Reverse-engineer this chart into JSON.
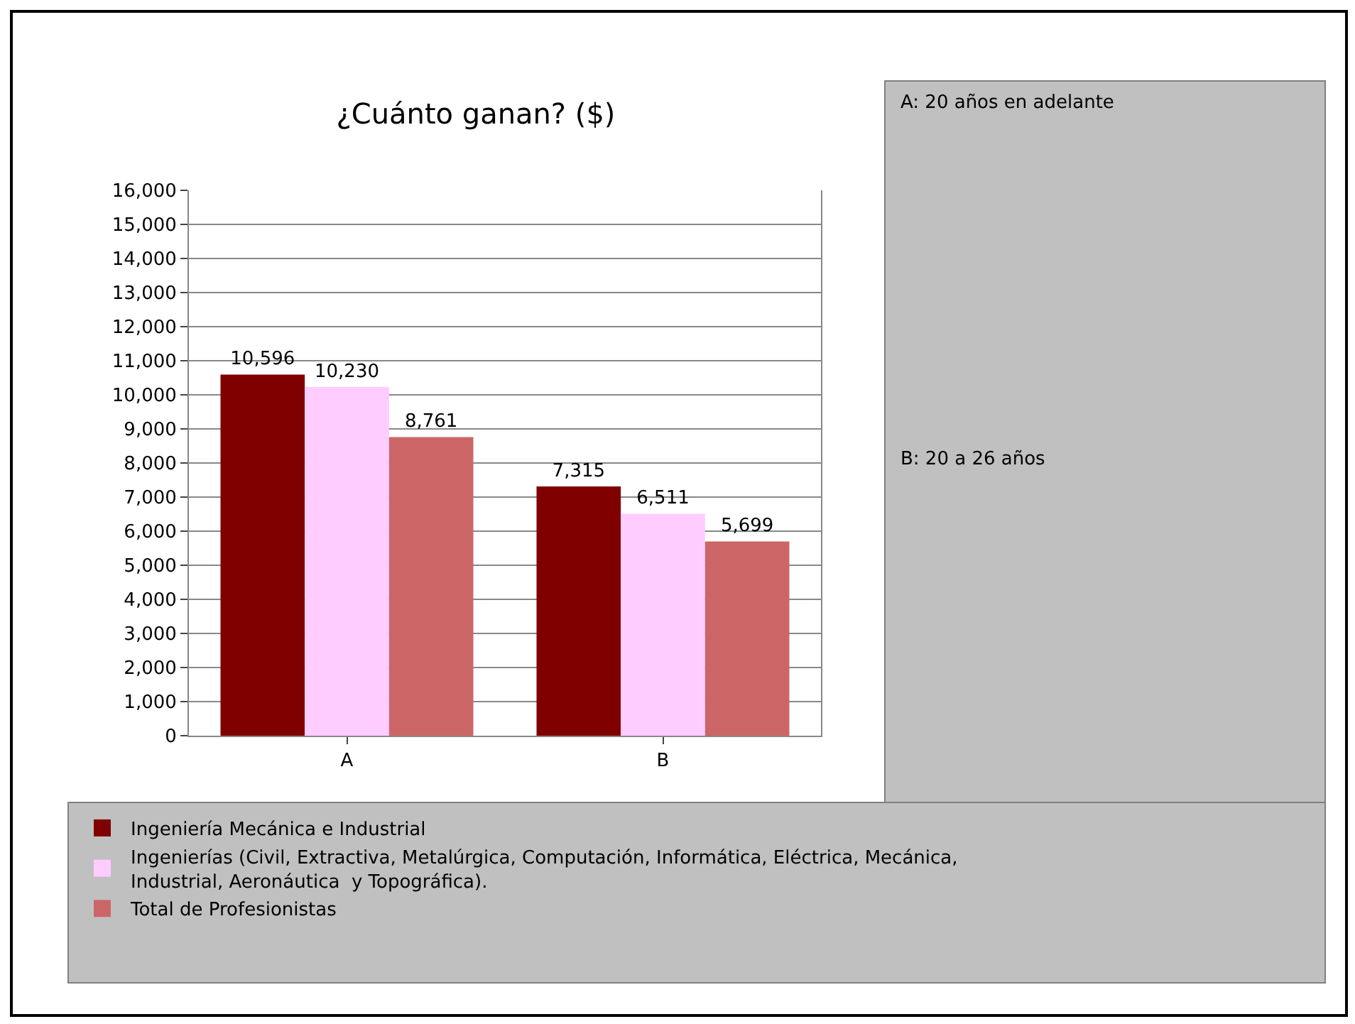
{
  "chart_data": {
    "type": "bar",
    "title": "¿Cuánto ganan? ($)",
    "categories": [
      "A",
      "B"
    ],
    "series": [
      {
        "name": "Ingeniería Mecánica e Industrial",
        "color": "#800000",
        "values": [
          10596,
          7315
        ],
        "value_labels": [
          "10,596",
          "7,315"
        ]
      },
      {
        "name": "Ingenierías (Civil, Extractiva, Metalúrgica, Computación, Informática, Eléctrica, Mecánica, Industrial, Aeronáutica  y Topográfica).",
        "color": "#ffccff",
        "values": [
          10230,
          6511
        ],
        "value_labels": [
          "10,230",
          "6,511"
        ]
      },
      {
        "name": "Total de Profesionistas",
        "color": "#cc6666",
        "values": [
          8761,
          5699
        ],
        "value_labels": [
          "8,761",
          "5,699"
        ]
      }
    ],
    "ylim": [
      0,
      16000
    ],
    "yticks": [
      0,
      {
        "value": 1000,
        "label": "1,000"
      },
      {
        "value": 2000,
        "label": "2,000"
      },
      {
        "value": 3000,
        "label": "3,000"
      },
      {
        "value": 4000,
        "label": "4,000"
      },
      {
        "value": 5000,
        "label": "5,000"
      },
      {
        "value": 6000,
        "label": "6,000"
      },
      {
        "value": 7000,
        "label": "7,000"
      },
      {
        "value": 8000,
        "label": "8,000"
      },
      {
        "value": 9000,
        "label": "9,000"
      },
      {
        "value": 10000,
        "label": "10,000"
      },
      {
        "value": 11000,
        "label": "11,000"
      },
      {
        "value": 12000,
        "label": "12,000"
      },
      {
        "value": 13000,
        "label": "13,000"
      },
      {
        "value": 14000,
        "label": "14,000"
      },
      {
        "value": 15000,
        "label": "15,000"
      },
      {
        "value": 16000,
        "label": "16,000"
      }
    ],
    "annotations": [
      "A: 20 años en adelante",
      "B: 20 a 26 años"
    ],
    "grid": "y",
    "legend": "bottom"
  }
}
